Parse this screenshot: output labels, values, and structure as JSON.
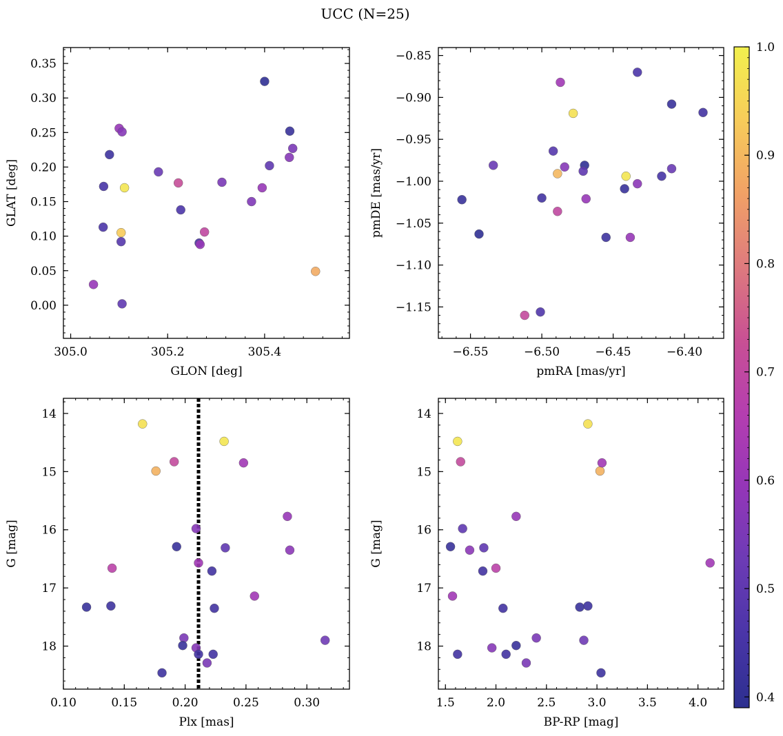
{
  "figure": {
    "title": "UCC (N=25)"
  },
  "colorbar": {
    "min": 0.39,
    "max": 1.0,
    "ticks": [
      0.4,
      0.5,
      0.6,
      0.7,
      0.8,
      0.9,
      1.0
    ],
    "tick_labels": [
      "0.4",
      "0.5",
      "0.6",
      "0.7",
      "0.8",
      "0.9",
      "1.0"
    ],
    "colormap": "plasma"
  },
  "colors": {
    "cmap_stops": [
      "#2c2f8f",
      "#4a35a8",
      "#6c3bb5",
      "#9436b8",
      "#b43eb0",
      "#c85094",
      "#de7a7e",
      "#f1a166",
      "#f7cc5a",
      "#f2f04e"
    ],
    "vline": "#000000"
  },
  "chart_data": [
    {
      "type": "scatter",
      "title": "",
      "xlabel": "GLON [deg]",
      "ylabel": "GLAT [deg]",
      "xlim": [
        304.985,
        305.575
      ],
      "ylim": [
        -0.048,
        0.373
      ],
      "xticks": [
        305.0,
        305.2,
        305.4
      ],
      "xtick_labels": [
        "305.0",
        "305.2",
        "305.4"
      ],
      "yticks": [
        0.0,
        0.05,
        0.1,
        0.15,
        0.2,
        0.25,
        0.3,
        0.35
      ],
      "ytick_labels": [
        "0.00",
        "0.05",
        "0.10",
        "0.15",
        "0.20",
        "0.25",
        "0.30",
        "0.35"
      ],
      "invert_y": false,
      "points": [
        {
          "x": 305.4,
          "y": 0.324,
          "c": 0.4
        },
        {
          "x": 305.452,
          "y": 0.252,
          "c": 0.42
        },
        {
          "x": 305.458,
          "y": 0.227,
          "c": 0.55
        },
        {
          "x": 305.451,
          "y": 0.214,
          "c": 0.57
        },
        {
          "x": 305.41,
          "y": 0.202,
          "c": 0.5
        },
        {
          "x": 305.395,
          "y": 0.17,
          "c": 0.6
        },
        {
          "x": 305.373,
          "y": 0.15,
          "c": 0.56
        },
        {
          "x": 305.312,
          "y": 0.178,
          "c": 0.55
        },
        {
          "x": 305.505,
          "y": 0.049,
          "c": 0.88
        },
        {
          "x": 305.276,
          "y": 0.106,
          "c": 0.7
        },
        {
          "x": 305.265,
          "y": 0.09,
          "c": 0.45
        },
        {
          "x": 305.267,
          "y": 0.088,
          "c": 0.6
        },
        {
          "x": 305.222,
          "y": 0.177,
          "c": 0.72
        },
        {
          "x": 305.227,
          "y": 0.138,
          "c": 0.46
        },
        {
          "x": 305.181,
          "y": 0.193,
          "c": 0.52
        },
        {
          "x": 305.1,
          "y": 0.256,
          "c": 0.6
        },
        {
          "x": 305.106,
          "y": 0.251,
          "c": 0.57
        },
        {
          "x": 305.08,
          "y": 0.218,
          "c": 0.43
        },
        {
          "x": 305.068,
          "y": 0.172,
          "c": 0.45
        },
        {
          "x": 305.111,
          "y": 0.17,
          "c": 0.98
        },
        {
          "x": 305.067,
          "y": 0.113,
          "c": 0.46
        },
        {
          "x": 305.104,
          "y": 0.105,
          "c": 0.93
        },
        {
          "x": 305.104,
          "y": 0.092,
          "c": 0.48
        },
        {
          "x": 305.047,
          "y": 0.03,
          "c": 0.6
        },
        {
          "x": 305.106,
          "y": 0.002,
          "c": 0.5
        }
      ]
    },
    {
      "type": "scatter",
      "title": "",
      "xlabel": "pmRA [mas/yr]",
      "ylabel": "pmDE [mas/yr]",
      "xlim": [
        -6.5725,
        -6.3725
      ],
      "ylim": [
        -1.1875,
        -0.8405
      ],
      "xticks": [
        -6.55,
        -6.5,
        -6.45,
        -6.4
      ],
      "xtick_labels": [
        "−6.55",
        "−6.50",
        "−6.45",
        "−6.40"
      ],
      "yticks": [
        -0.85,
        -0.9,
        -0.95,
        -1.0,
        -1.05,
        -1.1,
        -1.15
      ],
      "ytick_labels": [
        "−0.85",
        "−0.90",
        "−0.95",
        "−1.00",
        "−1.05",
        "−1.10",
        "−1.15"
      ],
      "invert_y": false,
      "points": [
        {
          "x": -6.487,
          "y": -0.882,
          "c": 0.62
        },
        {
          "x": -6.433,
          "y": -0.87,
          "c": 0.46
        },
        {
          "x": -6.478,
          "y": -0.919,
          "c": 0.97
        },
        {
          "x": -6.409,
          "y": -0.908,
          "c": 0.42
        },
        {
          "x": -6.387,
          "y": -0.918,
          "c": 0.44
        },
        {
          "x": -6.492,
          "y": -0.964,
          "c": 0.48
        },
        {
          "x": -6.534,
          "y": -0.981,
          "c": 0.52
        },
        {
          "x": -6.484,
          "y": -0.983,
          "c": 0.57
        },
        {
          "x": -6.47,
          "y": -0.981,
          "c": 0.4
        },
        {
          "x": -6.471,
          "y": -0.988,
          "c": 0.5
        },
        {
          "x": -6.489,
          "y": -0.991,
          "c": 0.9
        },
        {
          "x": -6.441,
          "y": -0.994,
          "c": 0.98
        },
        {
          "x": -6.416,
          "y": -0.994,
          "c": 0.45
        },
        {
          "x": -6.409,
          "y": -0.985,
          "c": 0.52
        },
        {
          "x": -6.433,
          "y": -1.003,
          "c": 0.58
        },
        {
          "x": -6.442,
          "y": -1.009,
          "c": 0.42
        },
        {
          "x": -6.469,
          "y": -1.021,
          "c": 0.6
        },
        {
          "x": -6.556,
          "y": -1.022,
          "c": 0.42
        },
        {
          "x": -6.5,
          "y": -1.02,
          "c": 0.44
        },
        {
          "x": -6.489,
          "y": -1.036,
          "c": 0.7
        },
        {
          "x": -6.544,
          "y": -1.063,
          "c": 0.4
        },
        {
          "x": -6.455,
          "y": -1.067,
          "c": 0.43
        },
        {
          "x": -6.438,
          "y": -1.067,
          "c": 0.6
        },
        {
          "x": -6.512,
          "y": -1.16,
          "c": 0.71
        },
        {
          "x": -6.501,
          "y": -1.156,
          "c": 0.47
        }
      ]
    },
    {
      "type": "scatter",
      "title": "",
      "xlabel": "Plx [mas]",
      "ylabel": "G [mag]",
      "xlim": [
        0.1,
        0.335
      ],
      "ylim": [
        18.74,
        13.74
      ],
      "xticks": [
        0.1,
        0.15,
        0.2,
        0.25,
        0.3
      ],
      "xtick_labels": [
        "0.10",
        "0.15",
        "0.20",
        "0.25",
        "0.30"
      ],
      "yticks": [
        14,
        15,
        16,
        17,
        18
      ],
      "ytick_labels": [
        "14",
        "15",
        "16",
        "17",
        "18"
      ],
      "invert_y": true,
      "vline": {
        "x": 0.211,
        "style": "dotted"
      },
      "points": [
        {
          "x": 0.165,
          "y": 14.18,
          "c": 0.97
        },
        {
          "x": 0.232,
          "y": 14.48,
          "c": 0.98
        },
        {
          "x": 0.191,
          "y": 14.83,
          "c": 0.71
        },
        {
          "x": 0.176,
          "y": 14.99,
          "c": 0.89
        },
        {
          "x": 0.248,
          "y": 14.85,
          "c": 0.62
        },
        {
          "x": 0.284,
          "y": 15.77,
          "c": 0.6
        },
        {
          "x": 0.209,
          "y": 15.98,
          "c": 0.57
        },
        {
          "x": 0.193,
          "y": 16.29,
          "c": 0.42
        },
        {
          "x": 0.233,
          "y": 16.31,
          "c": 0.5
        },
        {
          "x": 0.286,
          "y": 16.35,
          "c": 0.58
        },
        {
          "x": 0.211,
          "y": 16.57,
          "c": 0.62
        },
        {
          "x": 0.14,
          "y": 16.66,
          "c": 0.68
        },
        {
          "x": 0.222,
          "y": 16.71,
          "c": 0.44
        },
        {
          "x": 0.257,
          "y": 17.14,
          "c": 0.62
        },
        {
          "x": 0.119,
          "y": 17.33,
          "c": 0.42
        },
        {
          "x": 0.139,
          "y": 17.31,
          "c": 0.43
        },
        {
          "x": 0.224,
          "y": 17.35,
          "c": 0.44
        },
        {
          "x": 0.315,
          "y": 17.9,
          "c": 0.53
        },
        {
          "x": 0.199,
          "y": 17.86,
          "c": 0.55
        },
        {
          "x": 0.198,
          "y": 17.99,
          "c": 0.42
        },
        {
          "x": 0.209,
          "y": 18.03,
          "c": 0.57
        },
        {
          "x": 0.211,
          "y": 18.14,
          "c": 0.44
        },
        {
          "x": 0.223,
          "y": 18.14,
          "c": 0.44
        },
        {
          "x": 0.218,
          "y": 18.29,
          "c": 0.55
        },
        {
          "x": 0.181,
          "y": 18.46,
          "c": 0.43
        }
      ]
    },
    {
      "type": "scatter",
      "title": "",
      "xlabel": "BP-RP [mag]",
      "ylabel": "G [mag]",
      "xlim": [
        1.43,
        4.255
      ],
      "ylim": [
        18.74,
        13.74
      ],
      "xticks": [
        1.5,
        2.0,
        2.5,
        3.0,
        3.5,
        4.0
      ],
      "xtick_labels": [
        "1.5",
        "2.0",
        "2.5",
        "3.0",
        "3.5",
        "4.0"
      ],
      "yticks": [
        14,
        15,
        16,
        17,
        18
      ],
      "ytick_labels": [
        "14",
        "15",
        "16",
        "17",
        "18"
      ],
      "invert_y": true,
      "points": [
        {
          "x": 2.91,
          "y": 14.18,
          "c": 0.97
        },
        {
          "x": 1.62,
          "y": 14.48,
          "c": 0.98
        },
        {
          "x": 1.65,
          "y": 14.83,
          "c": 0.71
        },
        {
          "x": 3.03,
          "y": 14.99,
          "c": 0.89
        },
        {
          "x": 3.05,
          "y": 14.85,
          "c": 0.62
        },
        {
          "x": 2.2,
          "y": 15.77,
          "c": 0.6
        },
        {
          "x": 1.67,
          "y": 15.98,
          "c": 0.5
        },
        {
          "x": 1.55,
          "y": 16.29,
          "c": 0.42
        },
        {
          "x": 1.74,
          "y": 16.35,
          "c": 0.58
        },
        {
          "x": 1.88,
          "y": 16.31,
          "c": 0.5
        },
        {
          "x": 2.0,
          "y": 16.66,
          "c": 0.68
        },
        {
          "x": 1.87,
          "y": 16.71,
          "c": 0.44
        },
        {
          "x": 4.12,
          "y": 16.57,
          "c": 0.62
        },
        {
          "x": 1.57,
          "y": 17.14,
          "c": 0.62
        },
        {
          "x": 2.07,
          "y": 17.35,
          "c": 0.44
        },
        {
          "x": 2.83,
          "y": 17.33,
          "c": 0.42
        },
        {
          "x": 2.91,
          "y": 17.31,
          "c": 0.43
        },
        {
          "x": 2.4,
          "y": 17.86,
          "c": 0.55
        },
        {
          "x": 2.87,
          "y": 17.9,
          "c": 0.53
        },
        {
          "x": 1.96,
          "y": 18.03,
          "c": 0.57
        },
        {
          "x": 2.2,
          "y": 17.99,
          "c": 0.42
        },
        {
          "x": 1.62,
          "y": 18.14,
          "c": 0.44
        },
        {
          "x": 2.1,
          "y": 18.14,
          "c": 0.44
        },
        {
          "x": 2.3,
          "y": 18.29,
          "c": 0.55
        },
        {
          "x": 3.04,
          "y": 18.46,
          "c": 0.43
        }
      ]
    }
  ]
}
